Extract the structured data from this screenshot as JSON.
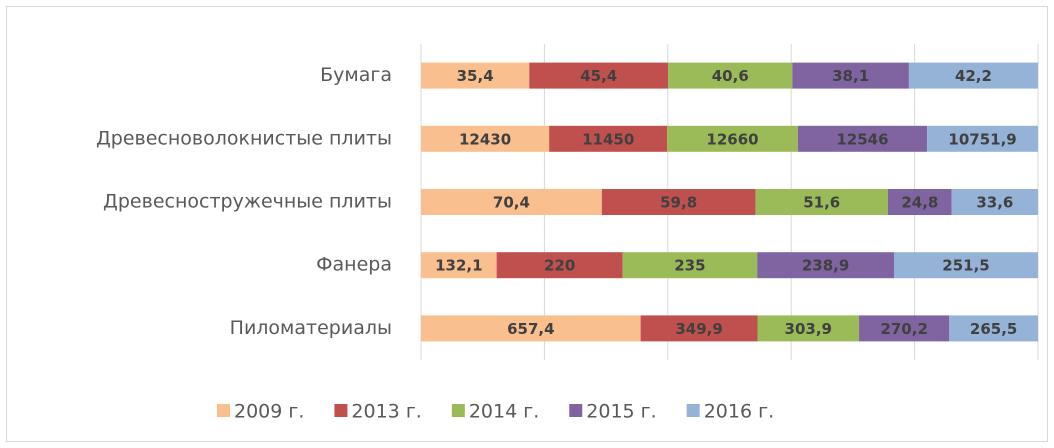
{
  "chart_data": {
    "type": "stacked-bar-100",
    "orientation": "horizontal",
    "categories": [
      "Бумага",
      "Древесноволокнистые плиты",
      "Древесностружечные плиты",
      "Фанера",
      "Пиломатериалы"
    ],
    "series": [
      {
        "name": "2009 г.",
        "color": "#f9bf8f",
        "values": [
          35.4,
          12430,
          70.4,
          132.1,
          657.4
        ],
        "value_labels": [
          "35,4",
          "12430",
          "70,4",
          "132,1",
          "657,4"
        ]
      },
      {
        "name": "2013 г.",
        "color": "#c0504d",
        "values": [
          45.4,
          11450,
          59.8,
          220,
          349.9
        ],
        "value_labels": [
          "45,4",
          "11450",
          "59,8",
          "220",
          "349,9"
        ]
      },
      {
        "name": "2014 г.",
        "color": "#9bbb59",
        "values": [
          40.6,
          12660,
          51.6,
          235,
          303.9
        ],
        "value_labels": [
          "40,6",
          "12660",
          "51,6",
          "235",
          "303,9"
        ]
      },
      {
        "name": "2015 г.",
        "color": "#8064a2",
        "values": [
          38.1,
          12546,
          24.8,
          238.9,
          270.2
        ],
        "value_labels": [
          "38,1",
          "12546",
          "24,8",
          "238,9",
          "270,2"
        ]
      },
      {
        "name": "2016 г.",
        "color": "#95b3d7",
        "values": [
          42.2,
          10751.9,
          33.6,
          251.5,
          265.5
        ],
        "value_labels": [
          "42,2",
          "10751,9",
          "33,6",
          "251,5",
          "265,5"
        ]
      }
    ],
    "xlim": [
      0,
      100
    ],
    "xticks": [
      0,
      20,
      40,
      60,
      80,
      100
    ],
    "tick_labels": false,
    "grid": true,
    "legend": "bottom"
  }
}
